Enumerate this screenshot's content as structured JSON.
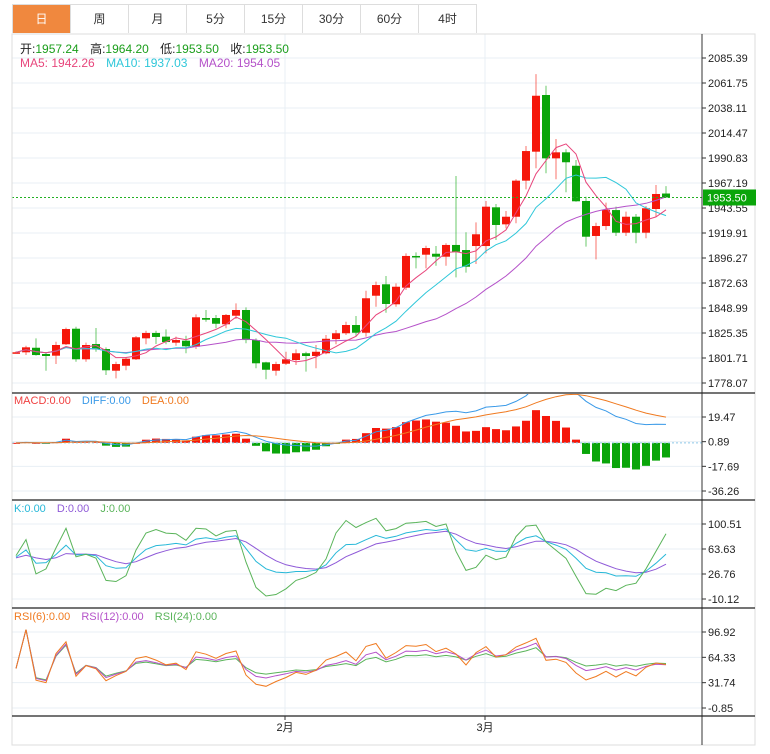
{
  "tabs": [
    {
      "label": "日",
      "active": true
    },
    {
      "label": "周"
    },
    {
      "label": "月"
    },
    {
      "label": "5分"
    },
    {
      "label": "15分"
    },
    {
      "label": "30分"
    },
    {
      "label": "60分"
    },
    {
      "label": "4时"
    }
  ],
  "ohlc_legend": {
    "open_label": "开:",
    "open": "1957.24",
    "high_label": "高:",
    "high": "1964.20",
    "low_label": "低:",
    "low": "1953.50",
    "close_label": "收:",
    "close": "1953.50"
  },
  "ma_legend": {
    "ma5": "MA5: 1942.26",
    "ma10": "MA10: 1937.03",
    "ma20": "MA20: 1954.05"
  },
  "macd_legend": {
    "macd": "MACD:0.00",
    "diff": "DIFF:0.00",
    "dea": "DEA:0.00"
  },
  "kdj_legend": {
    "k": "K:0.00",
    "d": "D:0.00",
    "j": "J:0.00"
  },
  "rsi_legend": {
    "rsi6": "RSI(6):0.00",
    "rsi12": "RSI(12):0.00",
    "rsi24": "RSI(24):0.00"
  },
  "current_price": "1953.50",
  "colors": {
    "up": "#f5170a",
    "down": "#0aa50a",
    "ma5": "#e8467c",
    "ma10": "#2ec7d9",
    "ma20": "#b552c9",
    "diff": "#3a9ae8",
    "dea": "#f07a20",
    "k": "#27b8d8",
    "d": "#8f5ad8",
    "j": "#5ab45a",
    "rsi6": "#f07a20",
    "rsi12": "#b552c9",
    "rsi24": "#5ab45a",
    "accent": "#f0883e"
  },
  "chart_data": {
    "type": "candlestick",
    "price_axis": {
      "ticks": [
        "2085.39",
        "2061.75",
        "2038.11",
        "2014.47",
        "1990.83",
        "1967.19",
        "1943.55",
        "1919.91",
        "1896.27",
        "1872.63",
        "1848.99",
        "1825.35",
        "1801.71",
        "1778.07"
      ],
      "range": [
        1778.07,
        2085.39
      ]
    },
    "macd_axis": {
      "ticks": [
        "19.47",
        "0.89",
        "-17.69",
        "-36.26"
      ],
      "range": [
        -36.26,
        19.47
      ]
    },
    "kdj_axis": {
      "ticks": [
        "100.51",
        "63.63",
        "26.76",
        "-10.12"
      ],
      "range": [
        -10.12,
        100.51
      ]
    },
    "rsi_axis": {
      "ticks": [
        "96.92",
        "64.33",
        "31.74",
        "-0.85"
      ],
      "range": [
        -0.85,
        96.92
      ]
    },
    "x_labels": [
      {
        "label": "2月",
        "index": 27
      },
      {
        "label": "3月",
        "index": 47
      }
    ],
    "candles_ohlc": [
      [
        1807.0,
        1808.0,
        1806.0,
        1807.1
      ],
      [
        1807.1,
        1813.3,
        1804.5,
        1811.8
      ],
      [
        1811.4,
        1820.3,
        1803.9,
        1804.5
      ],
      [
        1805.5,
        1806.2,
        1789.7,
        1803.6
      ],
      [
        1803.9,
        1817.1,
        1796.0,
        1814.0
      ],
      [
        1814.7,
        1830.4,
        1814.0,
        1829.1
      ],
      [
        1829.4,
        1831.3,
        1798.2,
        1800.5
      ],
      [
        1800.5,
        1816.2,
        1798.2,
        1814.0
      ],
      [
        1814.9,
        1830.1,
        1807.6,
        1809.9
      ],
      [
        1810.2,
        1811.8,
        1785.6,
        1790.1
      ],
      [
        1789.7,
        1798.2,
        1782.5,
        1796.0
      ],
      [
        1794.4,
        1802.6,
        1790.1,
        1801.0
      ],
      [
        1800.5,
        1822.5,
        1799.8,
        1821.3
      ],
      [
        1820.3,
        1827.5,
        1814.7,
        1825.4
      ],
      [
        1825.4,
        1827.5,
        1814.9,
        1821.6
      ],
      [
        1821.9,
        1828.8,
        1814.7,
        1816.8
      ],
      [
        1816.2,
        1821.9,
        1813.3,
        1818.7
      ],
      [
        1818.1,
        1822.8,
        1806.2,
        1812.8
      ],
      [
        1812.4,
        1843.0,
        1810.2,
        1840.2
      ],
      [
        1839.5,
        1847.1,
        1836.0,
        1837.9
      ],
      [
        1839.5,
        1842.4,
        1829.8,
        1834.1
      ],
      [
        1833.6,
        1843.3,
        1829.8,
        1842.4
      ],
      [
        1841.7,
        1853.4,
        1838.6,
        1847.1
      ],
      [
        1847.1,
        1849.6,
        1815.6,
        1818.7
      ],
      [
        1818.7,
        1820.3,
        1792.0,
        1796.7
      ],
      [
        1797.6,
        1798.2,
        1781.6,
        1790.6
      ],
      [
        1789.7,
        1798.2,
        1785.0,
        1796.0
      ],
      [
        1796.3,
        1807.6,
        1795.1,
        1800.5
      ],
      [
        1799.8,
        1809.9,
        1795.1,
        1806.2
      ],
      [
        1806.2,
        1807.6,
        1788.8,
        1803.6
      ],
      [
        1803.6,
        1814.0,
        1792.0,
        1807.6
      ],
      [
        1806.2,
        1823.4,
        1805.2,
        1819.9
      ],
      [
        1819.6,
        1828.2,
        1814.7,
        1825.1
      ],
      [
        1825.1,
        1836.0,
        1823.4,
        1832.9
      ],
      [
        1832.9,
        1841.4,
        1821.9,
        1825.6
      ],
      [
        1825.6,
        1865.3,
        1821.9,
        1858.2
      ],
      [
        1860.6,
        1873.9,
        1850.2,
        1870.7
      ],
      [
        1871.4,
        1879.2,
        1844.5,
        1852.8
      ],
      [
        1852.5,
        1872.3,
        1850.2,
        1869.1
      ],
      [
        1868.2,
        1900.7,
        1866.0,
        1898.2
      ],
      [
        1898.2,
        1901.6,
        1886.5,
        1897.2
      ],
      [
        1899.4,
        1907.9,
        1886.5,
        1905.7
      ],
      [
        1900.3,
        1907.6,
        1889.0,
        1897.5
      ],
      [
        1897.5,
        1910.2,
        1889.0,
        1908.6
      ],
      [
        1908.6,
        1973.8,
        1878.0,
        1902.2
      ],
      [
        1903.8,
        1920.6,
        1882.4,
        1888.0
      ],
      [
        1907.6,
        1930.0,
        1890.6,
        1918.7
      ],
      [
        1907.6,
        1950.2,
        1900.7,
        1944.8
      ],
      [
        1944.2,
        1947.3,
        1913.3,
        1927.5
      ],
      [
        1928.1,
        1940.7,
        1924.3,
        1935.3
      ],
      [
        1935.3,
        1970.7,
        1929.1,
        1969.4
      ],
      [
        1969.4,
        2002.2,
        1961.2,
        1997.4
      ],
      [
        1996.8,
        2070.2,
        1981.1,
        2049.7
      ],
      [
        2050.4,
        2059.2,
        1976.4,
        1990.5
      ],
      [
        1990.5,
        2008.8,
        1970.7,
        1996.2
      ],
      [
        1996.2,
        1999.1,
        1958.4,
        1986.8
      ],
      [
        1983.5,
        1988.9,
        1949.5,
        1949.9
      ],
      [
        1950.2,
        1954.2,
        1907.0,
        1916.4
      ],
      [
        1917.1,
        1929.6,
        1895.0,
        1926.5
      ],
      [
        1926.5,
        1948.6,
        1922.7,
        1941.9
      ],
      [
        1941.6,
        1944.8,
        1917.1,
        1920.2
      ],
      [
        1920.2,
        1940.1,
        1917.1,
        1935.3
      ],
      [
        1935.3,
        1937.9,
        1910.2,
        1920.2
      ],
      [
        1920.2,
        1945.4,
        1914.9,
        1943.3
      ],
      [
        1942.6,
        1965.3,
        1935.3,
        1956.8
      ],
      [
        1957.24,
        1964.2,
        1953.5,
        1953.5
      ]
    ]
  }
}
